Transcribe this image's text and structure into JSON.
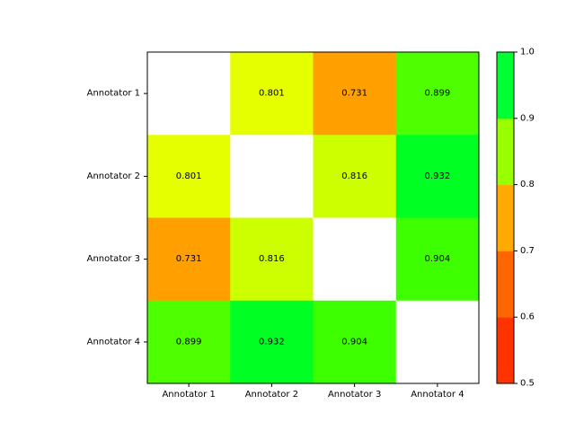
{
  "chart_data": {
    "type": "heatmap",
    "row_labels": [
      "Annotator 1",
      "Annotator 2",
      "Annotator 3",
      "Annotator 4"
    ],
    "col_labels": [
      "Annotator 1",
      "Annotator 2",
      "Annotator 3",
      "Annotator 4"
    ],
    "values": [
      [
        null,
        0.801,
        0.731,
        0.899
      ],
      [
        0.801,
        null,
        0.816,
        0.932
      ],
      [
        0.731,
        0.816,
        null,
        0.904
      ],
      [
        0.899,
        0.932,
        0.904,
        null
      ]
    ],
    "cell_labels": [
      [
        "",
        "0.801",
        "0.731",
        "0.899"
      ],
      [
        "0.801",
        "",
        "0.816",
        "0.932"
      ],
      [
        "0.731",
        "0.816",
        "",
        "0.904"
      ],
      [
        "0.899",
        "0.932",
        "0.904",
        ""
      ]
    ],
    "colorbar": {
      "range": [
        0.5,
        1.0
      ],
      "ticks": [
        0.5,
        0.6,
        0.7,
        0.8,
        0.9,
        1.0
      ],
      "tick_labels": [
        "0.5",
        "0.6",
        "0.7",
        "0.8",
        "0.9",
        "1.0"
      ],
      "bands": [
        {
          "from": 0.5,
          "to": 0.6,
          "color": "#ff3300"
        },
        {
          "from": 0.6,
          "to": 0.7,
          "color": "#ff6600"
        },
        {
          "from": 0.7,
          "to": 0.8,
          "color": "#ffaa00"
        },
        {
          "from": 0.8,
          "to": 0.9,
          "color": "#99ff00"
        },
        {
          "from": 0.9,
          "to": 1.0,
          "color": "#00ff33"
        }
      ]
    },
    "cell_colors": [
      [
        "#ffffff",
        "#e6ff00",
        "#ff9f00",
        "#4dff00"
      ],
      [
        "#e6ff00",
        "#ffffff",
        "#ccff00",
        "#00ff22"
      ],
      [
        "#ff9f00",
        "#ccff00",
        "#ffffff",
        "#3dff00"
      ],
      [
        "#4dff00",
        "#00ff22",
        "#3dff00",
        "#ffffff"
      ]
    ]
  }
}
